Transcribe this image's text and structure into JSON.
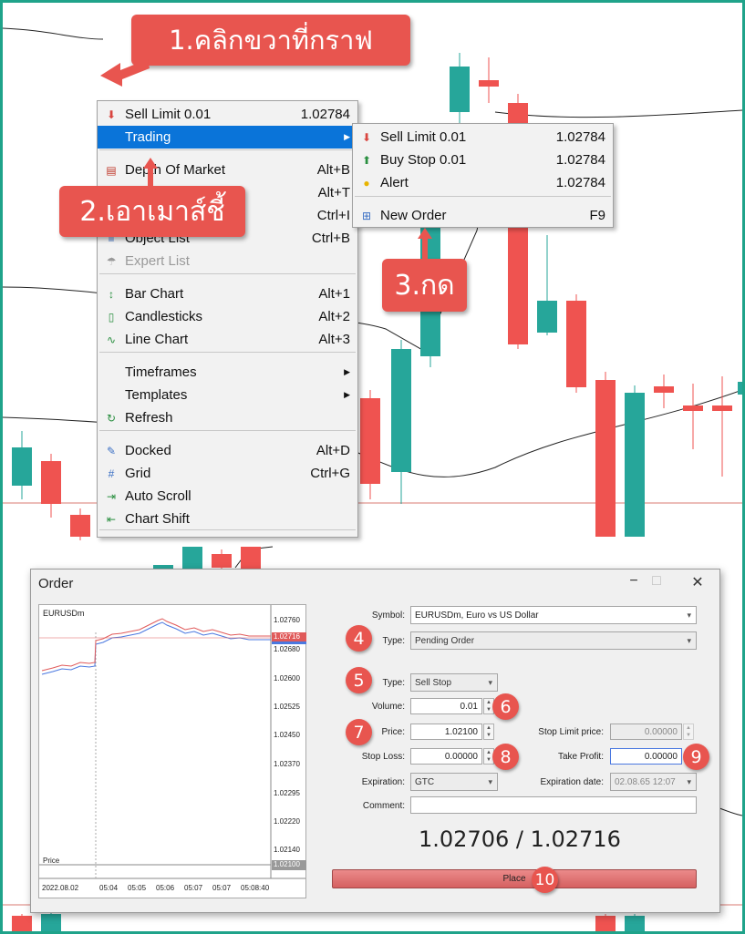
{
  "callouts": {
    "step1": "1.คลิกขวาที่กราฟ",
    "step2": "2.เอาเมาส์ชี้",
    "step3": "3.กด"
  },
  "context_menu": {
    "items": [
      {
        "label": "Sell Limit 0.01",
        "shortcut": "1.02784",
        "icon": "sell-arrow-icon"
      },
      {
        "label": "Trading",
        "shortcut": "",
        "icon": "",
        "highlighted": true,
        "submenu": true
      },
      {
        "label": "Depth Of Market",
        "shortcut": "Alt+B",
        "icon": "depth-of-market-icon"
      },
      {
        "label": "",
        "shortcut": "Alt+T",
        "icon": ""
      },
      {
        "label": "",
        "shortcut": "Ctrl+I",
        "icon": ""
      },
      {
        "label": "Object List",
        "shortcut": "Ctrl+B",
        "icon": "object-list-icon"
      },
      {
        "label": "Expert List",
        "shortcut": "",
        "icon": "expert-list-icon",
        "disabled": true
      },
      {
        "label": "Bar Chart",
        "shortcut": "Alt+1",
        "icon": "bar-chart-icon"
      },
      {
        "label": "Candlesticks",
        "shortcut": "Alt+2",
        "icon": "candlesticks-icon"
      },
      {
        "label": "Line Chart",
        "shortcut": "Alt+3",
        "icon": "line-chart-icon"
      },
      {
        "label": "Timeframes",
        "shortcut": "",
        "icon": "",
        "submenu": true
      },
      {
        "label": "Templates",
        "shortcut": "",
        "icon": "",
        "submenu": true
      },
      {
        "label": "Refresh",
        "shortcut": "",
        "icon": "refresh-icon"
      },
      {
        "label": "Docked",
        "shortcut": "Alt+D",
        "icon": "pin-icon"
      },
      {
        "label": "Grid",
        "shortcut": "Ctrl+G",
        "icon": "grid-icon"
      },
      {
        "label": "Auto Scroll",
        "shortcut": "",
        "icon": "auto-scroll-icon"
      },
      {
        "label": "Chart Shift",
        "shortcut": "",
        "icon": "chart-shift-icon"
      }
    ]
  },
  "trading_submenu": {
    "items": [
      {
        "label": "Sell Limit 0.01",
        "value": "1.02784",
        "icon": "sell-arrow-icon"
      },
      {
        "label": "Buy Stop 0.01",
        "value": "1.02784",
        "icon": "buy-arrow-icon"
      },
      {
        "label": "Alert",
        "value": "1.02784",
        "icon": "bell-icon"
      },
      {
        "label": "New Order",
        "value": "F9",
        "icon": "new-order-icon"
      }
    ]
  },
  "order_dialog": {
    "title": "Order",
    "mini_chart": {
      "symbol": "EURUSDm",
      "price_label": "Price",
      "y_ticks": [
        "1.02760",
        "1.02680",
        "1.02600",
        "1.02525",
        "1.02450",
        "1.02370",
        "1.02295",
        "1.02220",
        "1.02140"
      ],
      "bid_tag": "1.02716",
      "price_tag": "1.02100",
      "x_ticks": [
        "2022.08.02",
        "05:04",
        "05:05",
        "05:06",
        "05:07",
        "05:07",
        "05:08:40"
      ]
    },
    "symbol_label": "Symbol:",
    "symbol_value": "EURUSDm, Euro vs US Dollar",
    "type_label": "Type:",
    "type_value": "Pending Order",
    "pending_type_label": "Type:",
    "pending_type_value": "Sell Stop",
    "volume_label": "Volume:",
    "volume_value": "0.01",
    "price_label": "Price:",
    "price_value": "1.02100",
    "stop_limit_label": "Stop Limit price:",
    "stop_limit_value": "0.00000",
    "stop_loss_label": "Stop Loss:",
    "stop_loss_value": "0.00000",
    "take_profit_label": "Take Profit:",
    "take_profit_value": "0.00000",
    "expiration_label": "Expiration:",
    "expiration_value": "GTC",
    "expiration_date_label": "Expiration date:",
    "expiration_date_value": "02.08.65 12:07",
    "comment_label": "Comment:",
    "comment_value": "",
    "quote": "1.02706 / 1.02716",
    "place_label": "Place"
  },
  "badges": [
    "4",
    "5",
    "6",
    "7",
    "8",
    "9",
    "10"
  ],
  "colors": {
    "bull": "#26a69a",
    "bear": "#ef5350",
    "callout": "#e8554f",
    "highlight": "#0a74d9",
    "frame": "#1fa38a"
  }
}
